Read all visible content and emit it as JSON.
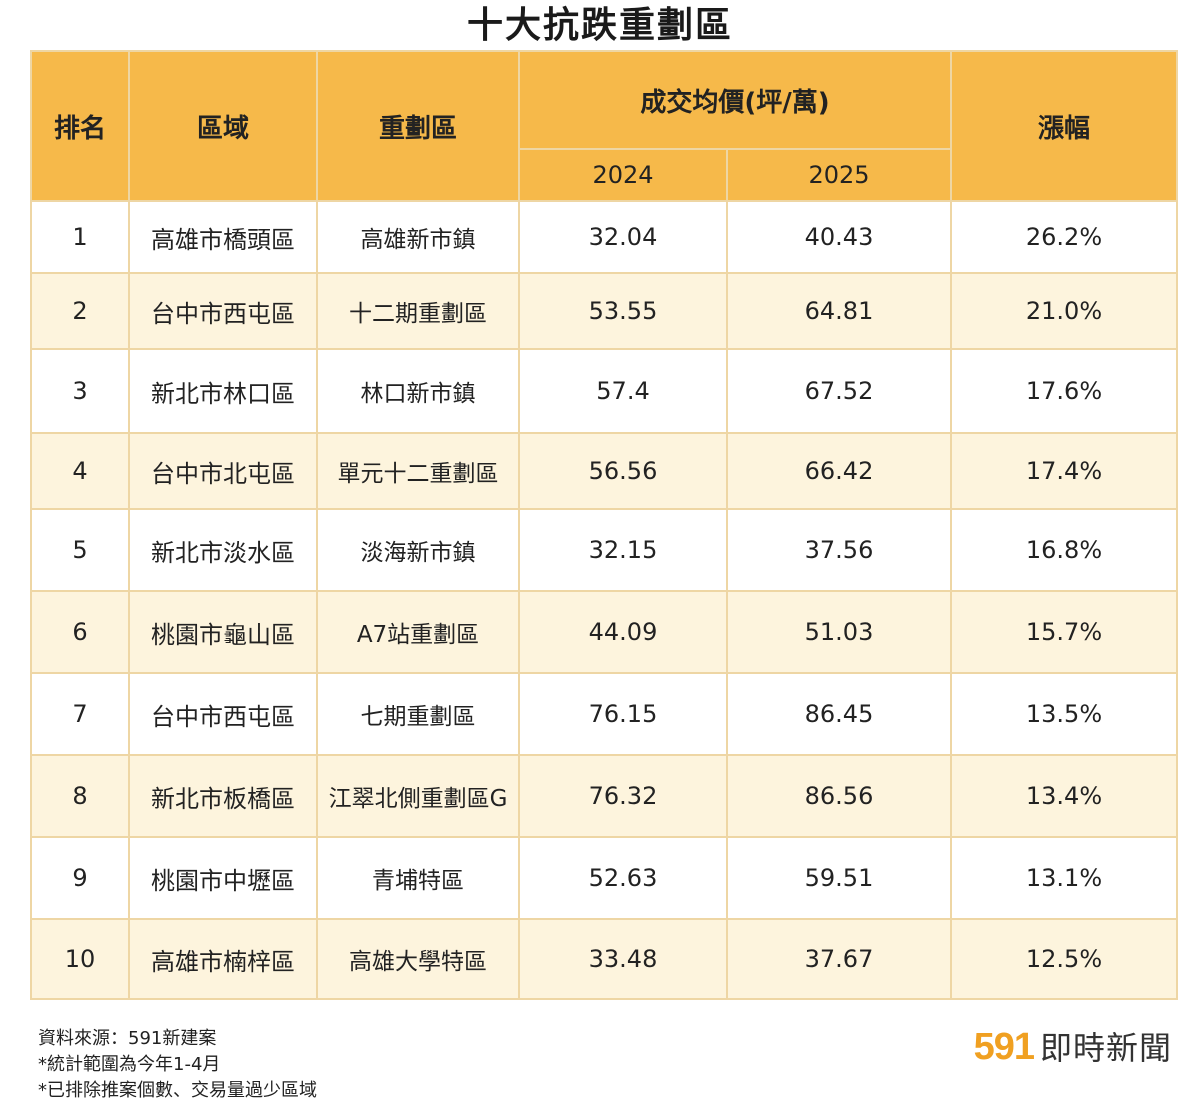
{
  "title": "十大抗跌重劃區",
  "table": {
    "headers": {
      "rank": "排名",
      "region": "區域",
      "zone": "重劃區",
      "avg_price": "成交均價(坪/萬)",
      "year_a": "2024",
      "year_b": "2025",
      "change": "漲幅"
    },
    "rows": [
      {
        "rank": "1",
        "region": "高雄市橋頭區",
        "zone": "高雄新市鎮",
        "p2024": "32.04",
        "p2025": "40.43",
        "change": "26.2%"
      },
      {
        "rank": "2",
        "region": "台中市西屯區",
        "zone": "十二期重劃區",
        "p2024": "53.55",
        "p2025": "64.81",
        "change": "21.0%"
      },
      {
        "rank": "3",
        "region": "新北市林口區",
        "zone": "林口新市鎮",
        "p2024": "57.4",
        "p2025": "67.52",
        "change": "17.6%"
      },
      {
        "rank": "4",
        "region": "台中市北屯區",
        "zone": "單元十二重劃區",
        "p2024": "56.56",
        "p2025": "66.42",
        "change": "17.4%"
      },
      {
        "rank": "5",
        "region": "新北市淡水區",
        "zone": "淡海新市鎮",
        "p2024": "32.15",
        "p2025": "37.56",
        "change": "16.8%"
      },
      {
        "rank": "6",
        "region": "桃園市龜山區",
        "zone": "A7站重劃區",
        "p2024": "44.09",
        "p2025": "51.03",
        "change": "15.7%"
      },
      {
        "rank": "7",
        "region": "台中市西屯區",
        "zone": "七期重劃區",
        "p2024": "76.15",
        "p2025": "86.45",
        "change": "13.5%"
      },
      {
        "rank": "8",
        "region": "新北市板橋區",
        "zone": "江翠北側重劃區G",
        "p2024": "76.32",
        "p2025": "86.56",
        "change": "13.4%"
      },
      {
        "rank": "9",
        "region": "桃園市中壢區",
        "zone": "青埔特區",
        "p2024": "52.63",
        "p2025": "59.51",
        "change": "13.1%"
      },
      {
        "rank": "10",
        "region": "高雄市楠梓區",
        "zone": "高雄大學特區",
        "p2024": "33.48",
        "p2025": "37.67",
        "change": "12.5%"
      }
    ]
  },
  "footer": {
    "source": "資料來源：591新建案",
    "note1": "*統計範圍為今年1-4月",
    "note2": "*已排除推案個數、交易量過少區域"
  },
  "brand": {
    "number": "591",
    "name": "即時新聞"
  }
}
